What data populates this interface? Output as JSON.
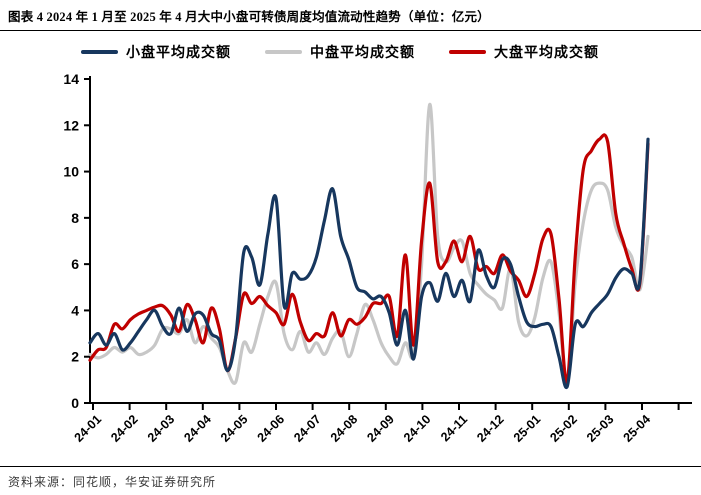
{
  "header": {
    "title": "图表 4 2024 年 1 月至 2025 年 4 月大中小盘可转债周度均值流动性趋势（单位：亿元）"
  },
  "footer": {
    "source": "资料来源：同花顺，华安证券研究所"
  },
  "chart_data": {
    "type": "line",
    "title": "2024年1月至2025年4月大中小盘可转债周度均值流动性趋势",
    "unit": "亿元",
    "x_frequency": "weekly",
    "x_tick_labels": [
      "24-01",
      "24-02",
      "24-03",
      "24-04",
      "24-05",
      "24-06",
      "24-07",
      "24-08",
      "24-09",
      "24-10",
      "24-11",
      "24-12",
      "25-01",
      "25-02",
      "25-03",
      "25-04"
    ],
    "ylim": [
      0,
      14
    ],
    "y_ticks": [
      0,
      2,
      4,
      6,
      8,
      10,
      12,
      14
    ],
    "grid": false,
    "legend_position": "top",
    "axis_color": "#000000",
    "series": [
      {
        "key": "small-cap",
        "name": "小盘平均成交额",
        "color": "#17375e",
        "values": [
          2.6,
          3.0,
          2.5,
          3.0,
          2.3,
          2.6,
          3.1,
          3.6,
          4.0,
          3.3,
          3.0,
          4.1,
          3.1,
          3.85,
          3.8,
          3.0,
          2.7,
          1.4,
          2.8,
          6.5,
          6.3,
          5.1,
          7.3,
          8.85,
          4.2,
          5.6,
          5.35,
          5.5,
          6.3,
          7.9,
          9.25,
          7.2,
          6.2,
          5.0,
          4.8,
          4.5,
          4.6,
          3.9,
          2.5,
          4.0,
          1.9,
          4.6,
          5.2,
          4.4,
          5.6,
          4.6,
          5.3,
          4.4,
          6.6,
          5.5,
          5.0,
          6.2,
          6.0,
          4.6,
          3.5,
          3.3,
          3.4,
          3.3,
          2.0,
          0.7,
          3.4,
          3.3,
          3.9,
          4.3,
          4.7,
          5.4,
          5.8,
          5.6,
          5.3,
          11.4
        ]
      },
      {
        "key": "mid-cap",
        "name": "中盘平均成交额",
        "color": "#c7c7c7",
        "values": [
          2.1,
          1.95,
          2.1,
          2.4,
          2.2,
          2.4,
          2.1,
          2.2,
          2.5,
          3.2,
          3.2,
          3.0,
          3.6,
          2.6,
          3.3,
          2.8,
          2.4,
          1.4,
          0.9,
          2.6,
          2.2,
          3.4,
          4.6,
          5.2,
          3.0,
          2.3,
          3.1,
          2.2,
          2.6,
          2.1,
          2.8,
          3.1,
          2.0,
          3.0,
          4.25,
          3.6,
          2.6,
          2.0,
          1.7,
          2.6,
          2.1,
          6.0,
          12.9,
          7.2,
          6.1,
          6.7,
          7.0,
          5.6,
          5.1,
          4.7,
          4.45,
          4.1,
          5.8,
          3.5,
          2.9,
          3.7,
          5.4,
          6.1,
          3.9,
          0.8,
          5.2,
          7.8,
          9.2,
          9.5,
          9.2,
          7.6,
          6.8,
          6.3,
          4.9,
          7.2
        ]
      },
      {
        "key": "large-cap",
        "name": "大盘平均成交额",
        "color": "#c00000",
        "values": [
          1.85,
          2.3,
          2.4,
          3.4,
          3.2,
          3.6,
          3.85,
          4.0,
          4.15,
          4.2,
          3.8,
          3.1,
          4.25,
          3.6,
          2.6,
          4.1,
          3.2,
          1.4,
          2.8,
          4.7,
          4.3,
          4.6,
          4.2,
          3.9,
          3.4,
          4.7,
          3.5,
          2.7,
          3.0,
          2.9,
          3.9,
          2.9,
          3.6,
          3.4,
          3.7,
          4.3,
          4.3,
          4.6,
          2.9,
          6.4,
          2.5,
          7.0,
          9.5,
          6.1,
          6.1,
          7.0,
          6.1,
          7.2,
          5.8,
          5.9,
          5.6,
          6.4,
          5.7,
          5.3,
          4.6,
          5.6,
          7.1,
          7.3,
          4.5,
          0.9,
          6.3,
          10.1,
          10.9,
          11.4,
          11.3,
          8.2,
          6.9,
          5.8,
          5.2,
          11.2
        ]
      }
    ]
  }
}
